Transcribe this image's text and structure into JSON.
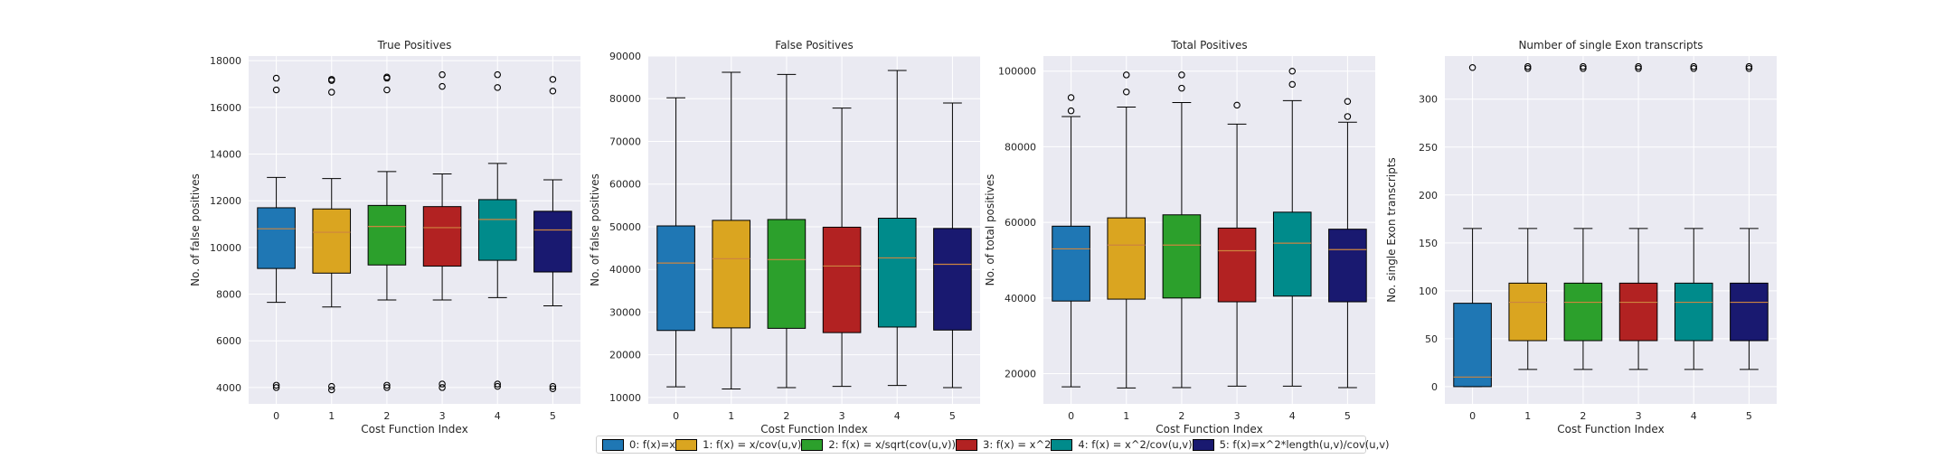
{
  "chart_data": [
    {
      "type": "box",
      "title": "True Positives",
      "xlabel": "Cost Function Index",
      "ylabel": "No. of false positives",
      "ylim": [
        3300,
        18200
      ],
      "yticks": [
        4000,
        6000,
        8000,
        10000,
        12000,
        14000,
        16000,
        18000
      ],
      "categories": [
        "0",
        "1",
        "2",
        "3",
        "4",
        "5"
      ],
      "boxes": [
        {
          "whislo": 7650,
          "q1": 9100,
          "med": 10800,
          "q3": 11700,
          "whishi": 13000,
          "fliers": [
            4000,
            4100,
            16750,
            17250
          ]
        },
        {
          "whislo": 7450,
          "q1": 8900,
          "med": 10650,
          "q3": 11650,
          "whishi": 12950,
          "fliers": [
            3900,
            4050,
            16650,
            17150,
            17200
          ]
        },
        {
          "whislo": 7750,
          "q1": 9250,
          "med": 10900,
          "q3": 11800,
          "whishi": 13250,
          "fliers": [
            4000,
            4100,
            16750,
            17250,
            17300
          ]
        },
        {
          "whislo": 7750,
          "q1": 9200,
          "med": 10850,
          "q3": 11750,
          "whishi": 13150,
          "fliers": [
            4000,
            4150,
            16900,
            17400
          ]
        },
        {
          "whislo": 7850,
          "q1": 9450,
          "med": 11200,
          "q3": 12050,
          "whishi": 13600,
          "fliers": [
            4050,
            4150,
            16850,
            17400
          ]
        },
        {
          "whislo": 7500,
          "q1": 8950,
          "med": 10750,
          "q3": 11550,
          "whishi": 12900,
          "fliers": [
            3950,
            4050,
            16700,
            17200
          ]
        }
      ]
    },
    {
      "type": "box",
      "title": "False Positives",
      "xlabel": "Cost Function Index",
      "ylabel": "No. of false positives",
      "ylim": [
        8500,
        90000
      ],
      "yticks": [
        10000,
        20000,
        30000,
        40000,
        50000,
        60000,
        70000,
        80000,
        90000
      ],
      "categories": [
        "0",
        "1",
        "2",
        "3",
        "4",
        "5"
      ],
      "boxes": [
        {
          "whislo": 12500,
          "q1": 25700,
          "med": 41500,
          "q3": 50200,
          "whishi": 80200,
          "fliers": []
        },
        {
          "whislo": 12000,
          "q1": 26300,
          "med": 42500,
          "q3": 51500,
          "whishi": 86200,
          "fliers": []
        },
        {
          "whislo": 12300,
          "q1": 26200,
          "med": 42300,
          "q3": 51700,
          "whishi": 85700,
          "fliers": []
        },
        {
          "whislo": 12600,
          "q1": 25200,
          "med": 40800,
          "q3": 49900,
          "whishi": 77800,
          "fliers": []
        },
        {
          "whislo": 12800,
          "q1": 26500,
          "med": 42700,
          "q3": 52000,
          "whishi": 86600,
          "fliers": []
        },
        {
          "whislo": 12300,
          "q1": 25800,
          "med": 41200,
          "q3": 49600,
          "whishi": 79000,
          "fliers": []
        }
      ]
    },
    {
      "type": "box",
      "title": "Total Positives",
      "xlabel": "Cost Function Index",
      "ylabel": "No. of total positives",
      "ylim": [
        12000,
        104000
      ],
      "yticks": [
        20000,
        40000,
        60000,
        80000,
        100000
      ],
      "categories": [
        "0",
        "1",
        "2",
        "3",
        "4",
        "5"
      ],
      "boxes": [
        {
          "whislo": 16500,
          "q1": 39200,
          "med": 53000,
          "q3": 59000,
          "whishi": 88000,
          "fliers": [
            89500,
            93000
          ]
        },
        {
          "whislo": 16200,
          "q1": 39700,
          "med": 54000,
          "q3": 61200,
          "whishi": 90500,
          "fliers": [
            94500,
            99000
          ]
        },
        {
          "whislo": 16300,
          "q1": 40000,
          "med": 54000,
          "q3": 62000,
          "whishi": 91700,
          "fliers": [
            95500,
            99000
          ]
        },
        {
          "whislo": 16700,
          "q1": 39000,
          "med": 52500,
          "q3": 58500,
          "whishi": 86000,
          "fliers": [
            91000
          ]
        },
        {
          "whislo": 16700,
          "q1": 40500,
          "med": 54500,
          "q3": 62700,
          "whishi": 92200,
          "fliers": [
            96500,
            100000
          ]
        },
        {
          "whislo": 16300,
          "q1": 39000,
          "med": 52800,
          "q3": 58200,
          "whishi": 86500,
          "fliers": [
            88000,
            92000
          ]
        }
      ]
    },
    {
      "type": "box",
      "title": "Number of single Exon transcripts",
      "xlabel": "Cost Function Index",
      "ylabel": "No. single Exon transcripts",
      "ylim": [
        -18,
        345
      ],
      "yticks": [
        0,
        50,
        100,
        150,
        200,
        250,
        300
      ],
      "categories": [
        "0",
        "1",
        "2",
        "3",
        "4",
        "5"
      ],
      "boxes": [
        {
          "whislo": 0,
          "q1": 0,
          "med": 10,
          "q3": 87,
          "whishi": 165,
          "fliers": [
            333
          ]
        },
        {
          "whislo": 18,
          "q1": 48,
          "med": 88,
          "q3": 108,
          "whishi": 165,
          "fliers": [
            332,
            334
          ]
        },
        {
          "whislo": 18,
          "q1": 48,
          "med": 88,
          "q3": 108,
          "whishi": 165,
          "fliers": [
            332,
            334
          ]
        },
        {
          "whislo": 18,
          "q1": 48,
          "med": 88,
          "q3": 108,
          "whishi": 165,
          "fliers": [
            332,
            334
          ]
        },
        {
          "whislo": 18,
          "q1": 48,
          "med": 88,
          "q3": 108,
          "whishi": 165,
          "fliers": [
            332,
            334
          ]
        },
        {
          "whislo": 18,
          "q1": 48,
          "med": 88,
          "q3": 108,
          "whishi": 165,
          "fliers": [
            332,
            334
          ]
        }
      ]
    }
  ],
  "legend": {
    "placement": "bottom-center",
    "items": [
      {
        "label": "0: f(x)=x",
        "color": "#1f77b4"
      },
      {
        "label": "1: f(x) = x/cov(u,v)",
        "color": "#daa520"
      },
      {
        "label": "2: f(x) = x/sqrt(cov(u,v))",
        "color": "#2ca02c"
      },
      {
        "label": "3: f(x) = x^2",
        "color": "#b22222"
      },
      {
        "label": "4: f(x) = x^2/cov(u,v)",
        "color": "#008b8b"
      },
      {
        "label": "5: f(x)=x^2*length(u,v)/cov(u,v)",
        "color": "#191970"
      }
    ]
  },
  "style": {
    "plot_background": "#eaeaf2",
    "grid_color": "#ffffff",
    "median_color": "#cd853f",
    "grid": true
  }
}
